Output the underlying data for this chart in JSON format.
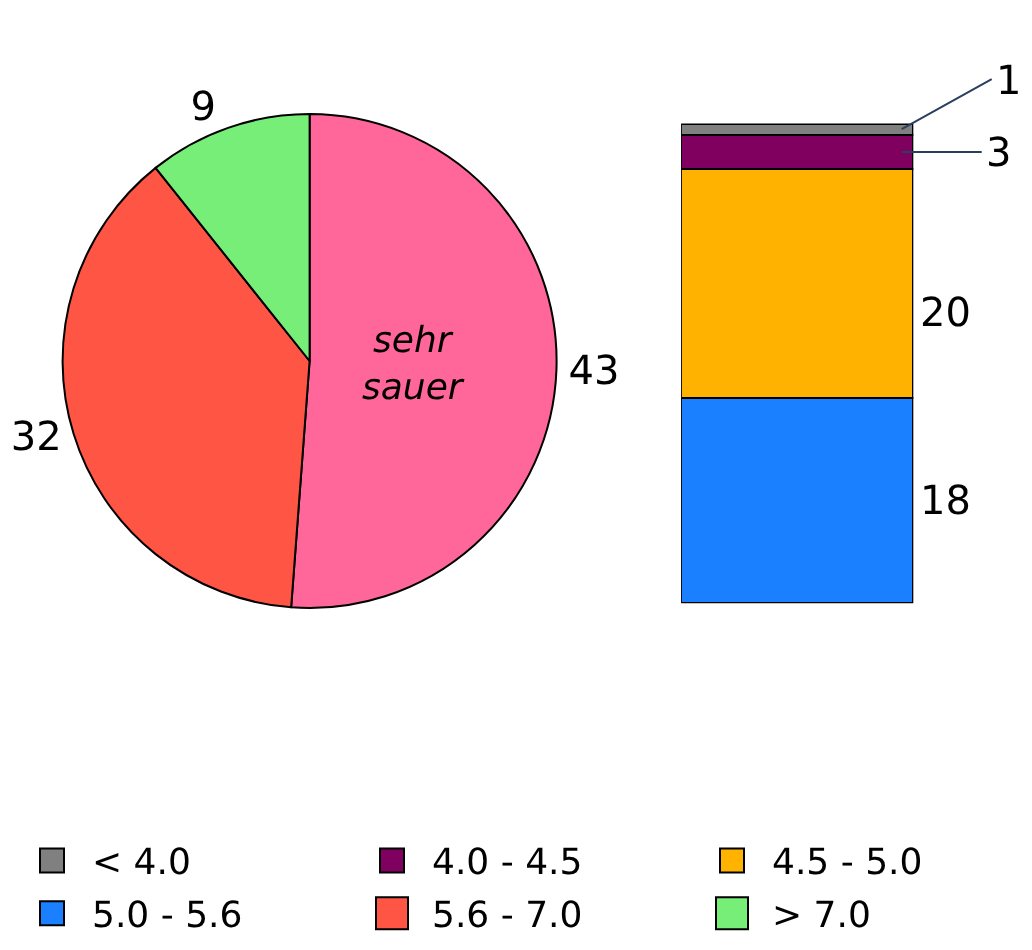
{
  "chart_data": [
    {
      "type": "pie",
      "categories": [
        null,
        "5.6 - 7.0",
        "> 7.0"
      ],
      "values": [
        43,
        32,
        9
      ],
      "colors": [
        "#ff6699",
        "#ff5544",
        "#77ee77"
      ],
      "data_labels": true,
      "annotations": [
        "sehr sauer"
      ],
      "legend": "bottom"
    },
    {
      "type": "bar",
      "stacked": true,
      "categories": [
        null
      ],
      "series": [
        {
          "name": "5.0 - 5.6",
          "color": "#1a80ff",
          "values": [
            18
          ]
        },
        {
          "name": "4.5 - 5.0",
          "color": "#ffb300",
          "values": [
            20
          ]
        },
        {
          "name": "4.0 - 4.5",
          "color": "#800060",
          "values": [
            3
          ]
        },
        {
          "name": "< 4.0",
          "color": "#808080",
          "values": [
            1
          ]
        }
      ],
      "data_labels": true,
      "legend": "bottom"
    }
  ]
}
